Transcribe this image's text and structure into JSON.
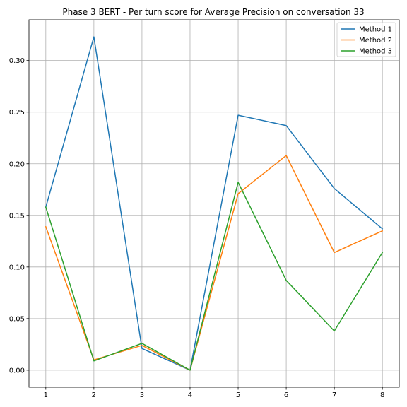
{
  "chart_data": {
    "type": "line",
    "title": "Phase 3 BERT - Per turn score for Average Precision on conversation 33",
    "xlabel": "",
    "ylabel": "",
    "x": [
      1,
      2,
      3,
      4,
      5,
      6,
      7,
      8
    ],
    "xlim": [
      0.65,
      8.35
    ],
    "ylim": [
      -0.0165,
      0.3395
    ],
    "xticks": [
      1,
      2,
      3,
      4,
      5,
      6,
      7,
      8
    ],
    "yticks": [
      0.0,
      0.05,
      0.1,
      0.15,
      0.2,
      0.25,
      0.3
    ],
    "ytick_labels": [
      "0.00",
      "0.05",
      "0.10",
      "0.15",
      "0.20",
      "0.25",
      "0.30"
    ],
    "grid": true,
    "legend_position": "top-right",
    "series": [
      {
        "name": "Method 1",
        "color": "#1f77b4",
        "values": [
          0.158,
          0.323,
          0.021,
          0.0,
          0.247,
          0.237,
          0.176,
          0.137
        ]
      },
      {
        "name": "Method 2",
        "color": "#ff7f0e",
        "values": [
          0.139,
          0.01,
          0.024,
          0.0,
          0.171,
          0.208,
          0.114,
          0.135
        ]
      },
      {
        "name": "Method 3",
        "color": "#2ca02c",
        "values": [
          0.158,
          0.009,
          0.026,
          0.0,
          0.182,
          0.087,
          0.038,
          0.114
        ]
      }
    ]
  }
}
